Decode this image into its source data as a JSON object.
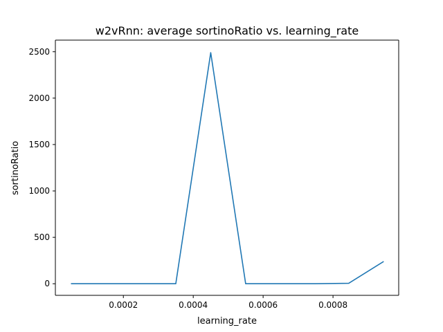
{
  "chart_data": {
    "type": "line",
    "title": "w2vRnn: average sortinoRatio vs. learning_rate",
    "xlabel": "learning_rate",
    "ylabel": "sortinoRatio",
    "xlim": [
      5.4e-06,
      0.000988
    ],
    "ylim": [
      -125,
      2625
    ],
    "xticks": [
      0.0002,
      0.0004,
      0.0006,
      0.0008
    ],
    "xtick_labels": [
      "0.0002",
      "0.0004",
      "0.0006",
      "0.0008"
    ],
    "yticks": [
      0,
      500,
      1000,
      1500,
      2000,
      2500
    ],
    "ytick_labels": [
      "0",
      "500",
      "1000",
      "1500",
      "2000",
      "2500"
    ],
    "grid": false,
    "legend": "none",
    "series": [
      {
        "color": "#1f77b4",
        "x": [
          5e-05,
          0.00035,
          0.00045,
          0.00055,
          0.00075,
          0.000845,
          0.000945
        ],
        "y": [
          0,
          0,
          2490,
          0,
          0,
          5,
          240
        ]
      }
    ]
  }
}
